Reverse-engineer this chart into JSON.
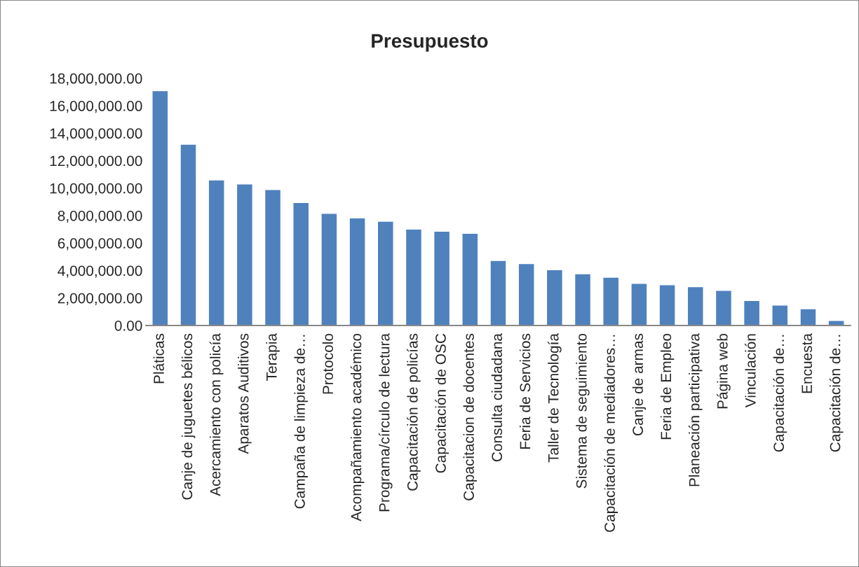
{
  "chart_data": {
    "type": "bar",
    "title": "Presupuesto",
    "categories": [
      "Pláticas",
      "Canje de juguetes bélicos",
      "Acercamiento con policía",
      "Aparatos Auditivos",
      "Terapia",
      "Campaña de limpieza de…",
      "Protocolo",
      "Acompañamiento académico",
      "Programa/círculo de lectura",
      "Capacitación de policías",
      "Capacitación de OSC",
      "Capacitacion de docentes",
      "Consulta ciudadana",
      "Feria de Servicios",
      "Taller de Tecnología",
      "Sistema de seguimiento",
      "Capacitación de mediadores…",
      "Canje de armas",
      "Feria de Empleo",
      "Planeación participativa",
      "Página web",
      "Vinculación",
      "Capacitación de…",
      "Encuesta",
      "Capacitación de…"
    ],
    "values": [
      17100000,
      13200000,
      10600000,
      10300000,
      9900000,
      8950000,
      8160000,
      7830000,
      7590000,
      7020000,
      6860000,
      6710000,
      4730000,
      4510000,
      4060000,
      3760000,
      3510000,
      3060000,
      2960000,
      2820000,
      2550000,
      1820000,
      1490000,
      1220000,
      370000
    ],
    "color": "#4f81bd",
    "ylim": [
      0,
      18000000
    ],
    "yticks": [
      {
        "value": 0,
        "label": "0.00"
      },
      {
        "value": 2000000,
        "label": "2,000,000.00"
      },
      {
        "value": 4000000,
        "label": "4,000,000.00"
      },
      {
        "value": 6000000,
        "label": "6,000,000.00"
      },
      {
        "value": 8000000,
        "label": "8,000,000.00"
      },
      {
        "value": 10000000,
        "label": "10,000,000.00"
      },
      {
        "value": 12000000,
        "label": "12,000,000.00"
      },
      {
        "value": 14000000,
        "label": "14,000,000.00"
      },
      {
        "value": 16000000,
        "label": "16,000,000.00"
      },
      {
        "value": 18000000,
        "label": "18,000,000.00"
      }
    ],
    "grid": false
  }
}
